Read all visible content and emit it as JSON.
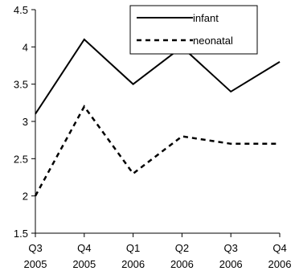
{
  "chart_data": {
    "type": "line",
    "title": "",
    "xlabel": "",
    "ylabel": "",
    "categories": [
      [
        "Q3",
        "2005"
      ],
      [
        "Q4",
        "2005"
      ],
      [
        "Q1",
        "2006"
      ],
      [
        "Q2",
        "2006"
      ],
      [
        "Q3",
        "2006"
      ],
      [
        "Q4",
        "2006"
      ]
    ],
    "ylim": [
      1.5,
      4.5
    ],
    "yticks": [
      "4.5",
      "4",
      "3.5",
      "3",
      "2.5",
      "2",
      "1.5"
    ],
    "ytick_values": [
      4.5,
      4,
      3.5,
      3,
      2.5,
      2,
      1.5
    ],
    "grid": false,
    "legend_position": "top-right",
    "series": [
      {
        "name": "infant",
        "style": "solid",
        "color": "#000000",
        "values": [
          3.1,
          4.1,
          3.5,
          4.0,
          3.4,
          3.8
        ]
      },
      {
        "name": "neonatal",
        "style": "dashed",
        "color": "#000000",
        "values": [
          2.0,
          3.2,
          2.3,
          2.8,
          2.7,
          2.7
        ]
      }
    ]
  }
}
